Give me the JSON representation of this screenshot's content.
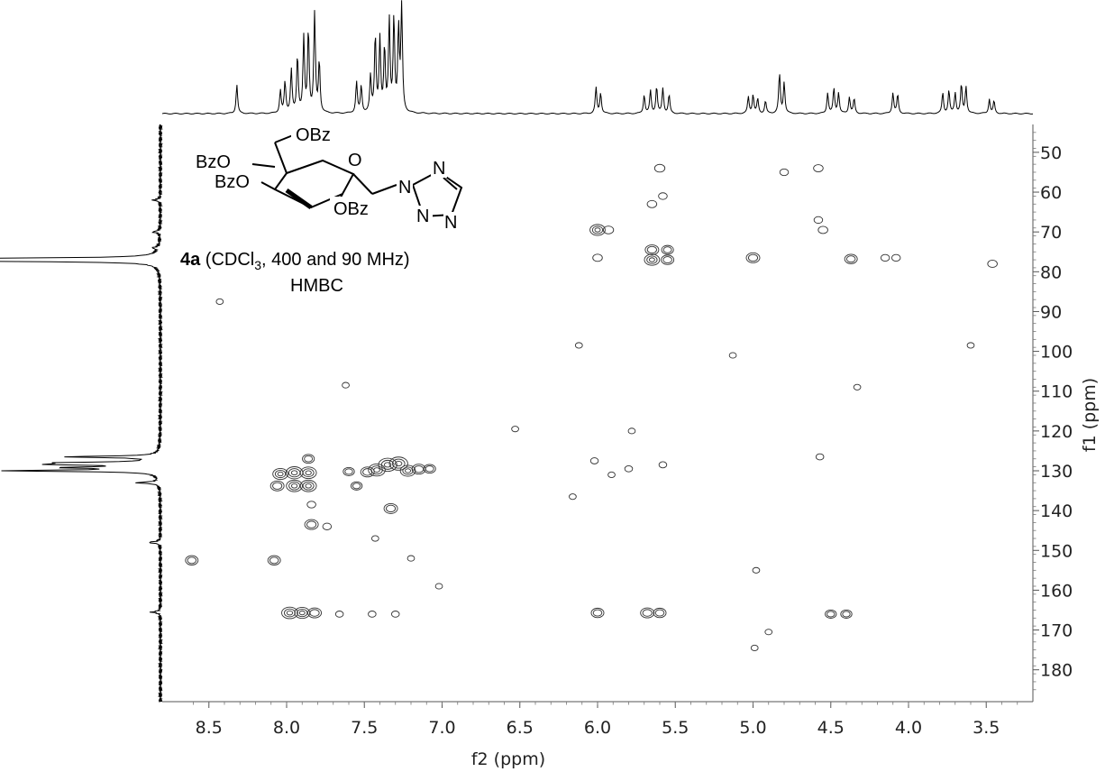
{
  "chart_data": {
    "type": "heatmap",
    "subtype": "2D NMR HMBC contour plot with 1D projections",
    "xlabel": "f2 (ppm)",
    "ylabel": "f1 (ppm)",
    "xlim": [
      8.8,
      3.2
    ],
    "ylim": [
      43,
      188
    ],
    "x_ticks": [
      "8.5",
      "8.0",
      "7.5",
      "7.0",
      "6.5",
      "6.0",
      "5.5",
      "5.0",
      "4.5",
      "4.0",
      "3.5"
    ],
    "x_tick_values": [
      8.5,
      8.0,
      7.5,
      7.0,
      6.5,
      6.0,
      5.5,
      5.0,
      4.5,
      4.0,
      3.5
    ],
    "y_ticks": [
      "50",
      "60",
      "70",
      "80",
      "90",
      "100",
      "110",
      "120",
      "130",
      "140",
      "150",
      "160",
      "170",
      "180"
    ],
    "y_tick_values": [
      50,
      60,
      70,
      80,
      90,
      100,
      110,
      120,
      130,
      140,
      150,
      160,
      170,
      180
    ],
    "grid": false,
    "annotation": {
      "compound": "4a",
      "conditions_prefix": " (CDCl",
      "subscript": "3",
      "conditions_suffix": ", 400 and 90 MHz)",
      "experiment": "HMBC"
    },
    "structure_labels": {
      "obz_top": "OBz",
      "bzo_1": "BzO",
      "bzo_2": "BzO",
      "obz_bottom": "OBz",
      "ring_o": "O",
      "n1": "N",
      "n2": "N",
      "n3": "N",
      "n4": "N"
    },
    "proton_peaks": [
      {
        "x": 8.32,
        "h": 0.28
      },
      {
        "x": 8.04,
        "h": 0.22
      },
      {
        "x": 8.01,
        "h": 0.3
      },
      {
        "x": 7.97,
        "h": 0.42
      },
      {
        "x": 7.93,
        "h": 0.55
      },
      {
        "x": 7.89,
        "h": 0.72
      },
      {
        "x": 7.86,
        "h": 0.8
      },
      {
        "x": 7.82,
        "h": 0.95
      },
      {
        "x": 7.79,
        "h": 0.5
      },
      {
        "x": 7.55,
        "h": 0.3
      },
      {
        "x": 7.52,
        "h": 0.26
      },
      {
        "x": 7.46,
        "h": 0.35
      },
      {
        "x": 7.43,
        "h": 0.75
      },
      {
        "x": 7.4,
        "h": 0.7
      },
      {
        "x": 7.37,
        "h": 0.62
      },
      {
        "x": 7.34,
        "h": 0.88
      },
      {
        "x": 7.31,
        "h": 0.9
      },
      {
        "x": 7.28,
        "h": 0.8
      },
      {
        "x": 7.26,
        "h": 1.0
      },
      {
        "x": 6.01,
        "h": 0.25
      },
      {
        "x": 5.98,
        "h": 0.2
      },
      {
        "x": 5.7,
        "h": 0.18
      },
      {
        "x": 5.66,
        "h": 0.22
      },
      {
        "x": 5.62,
        "h": 0.26
      },
      {
        "x": 5.58,
        "h": 0.24
      },
      {
        "x": 5.54,
        "h": 0.18
      },
      {
        "x": 5.03,
        "h": 0.16
      },
      {
        "x": 5.0,
        "h": 0.18
      },
      {
        "x": 4.97,
        "h": 0.14
      },
      {
        "x": 4.92,
        "h": 0.12
      },
      {
        "x": 4.83,
        "h": 0.38
      },
      {
        "x": 4.8,
        "h": 0.3
      },
      {
        "x": 4.52,
        "h": 0.2
      },
      {
        "x": 4.48,
        "h": 0.24
      },
      {
        "x": 4.45,
        "h": 0.2
      },
      {
        "x": 4.38,
        "h": 0.16
      },
      {
        "x": 4.35,
        "h": 0.14
      },
      {
        "x": 4.1,
        "h": 0.2
      },
      {
        "x": 4.07,
        "h": 0.18
      },
      {
        "x": 3.78,
        "h": 0.2
      },
      {
        "x": 3.74,
        "h": 0.22
      },
      {
        "x": 3.7,
        "h": 0.2
      },
      {
        "x": 3.66,
        "h": 0.28
      },
      {
        "x": 3.63,
        "h": 0.26
      },
      {
        "x": 3.48,
        "h": 0.14
      },
      {
        "x": 3.45,
        "h": 0.12
      }
    ],
    "carbon_peaks": [
      {
        "y": 77.0,
        "h": 1.0
      },
      {
        "y": 77.3,
        "h": 0.95
      },
      {
        "y": 76.7,
        "h": 0.9
      },
      {
        "y": 126.5,
        "h": 0.62
      },
      {
        "y": 128.0,
        "h": 0.55
      },
      {
        "y": 128.4,
        "h": 0.6
      },
      {
        "y": 129.2,
        "h": 0.58
      },
      {
        "y": 130.0,
        "h": 1.0
      },
      {
        "y": 133.0,
        "h": 0.15
      },
      {
        "y": 148.0,
        "h": 0.08
      },
      {
        "y": 165.5,
        "h": 0.06
      },
      {
        "y": 62.0,
        "h": 0.05
      },
      {
        "y": 70.0,
        "h": 0.05
      },
      {
        "y": 74.0,
        "h": 0.04
      }
    ],
    "cross_peaks": [
      {
        "x": 5.6,
        "y": 54,
        "s": 0.6
      },
      {
        "x": 4.8,
        "y": 55,
        "s": 0.4
      },
      {
        "x": 4.58,
        "y": 54,
        "s": 0.5
      },
      {
        "x": 5.58,
        "y": 61,
        "s": 0.4
      },
      {
        "x": 5.65,
        "y": 63,
        "s": 0.5
      },
      {
        "x": 6.0,
        "y": 69.5,
        "s": 1.2
      },
      {
        "x": 5.93,
        "y": 69.5,
        "s": 0.6
      },
      {
        "x": 5.65,
        "y": 74.5,
        "s": 1.0
      },
      {
        "x": 5.55,
        "y": 74.5,
        "s": 0.8
      },
      {
        "x": 5.65,
        "y": 77,
        "s": 1.2
      },
      {
        "x": 5.55,
        "y": 77,
        "s": 0.9
      },
      {
        "x": 6.0,
        "y": 76.5,
        "s": 0.5
      },
      {
        "x": 5.0,
        "y": 76.5,
        "s": 1.0
      },
      {
        "x": 4.37,
        "y": 76.8,
        "s": 0.9
      },
      {
        "x": 4.55,
        "y": 69.5,
        "s": 0.5
      },
      {
        "x": 4.58,
        "y": 67,
        "s": 0.4
      },
      {
        "x": 3.46,
        "y": 78,
        "s": 0.5
      },
      {
        "x": 4.15,
        "y": 76.5,
        "s": 0.4
      },
      {
        "x": 4.08,
        "y": 76.5,
        "s": 0.4
      },
      {
        "x": 7.35,
        "y": 128.5,
        "s": 1.6
      },
      {
        "x": 7.28,
        "y": 128.2,
        "s": 1.6
      },
      {
        "x": 7.42,
        "y": 129.8,
        "s": 1.4
      },
      {
        "x": 7.22,
        "y": 130,
        "s": 1.2
      },
      {
        "x": 7.15,
        "y": 129.6,
        "s": 1.0
      },
      {
        "x": 7.08,
        "y": 129.5,
        "s": 0.8
      },
      {
        "x": 7.48,
        "y": 130.3,
        "s": 1.0
      },
      {
        "x": 7.95,
        "y": 130.5,
        "s": 1.4
      },
      {
        "x": 7.86,
        "y": 130.5,
        "s": 1.3
      },
      {
        "x": 8.04,
        "y": 130.8,
        "s": 1.2
      },
      {
        "x": 7.95,
        "y": 133.8,
        "s": 1.3
      },
      {
        "x": 7.86,
        "y": 133.8,
        "s": 1.3
      },
      {
        "x": 8.06,
        "y": 133.8,
        "s": 1.0
      },
      {
        "x": 7.86,
        "y": 127,
        "s": 0.8
      },
      {
        "x": 7.55,
        "y": 133.8,
        "s": 0.7
      },
      {
        "x": 7.6,
        "y": 130.2,
        "s": 0.7
      },
      {
        "x": 7.33,
        "y": 139.5,
        "s": 1.0
      },
      {
        "x": 7.84,
        "y": 143.5,
        "s": 1.0
      },
      {
        "x": 7.74,
        "y": 144,
        "s": 0.4
      },
      {
        "x": 7.84,
        "y": 138.5,
        "s": 0.4
      },
      {
        "x": 8.61,
        "y": 152.5,
        "s": 0.9
      },
      {
        "x": 8.08,
        "y": 152.5,
        "s": 0.9
      },
      {
        "x": 7.98,
        "y": 165.7,
        "s": 1.3
      },
      {
        "x": 7.9,
        "y": 165.7,
        "s": 1.2
      },
      {
        "x": 7.82,
        "y": 165.7,
        "s": 1.0
      },
      {
        "x": 7.66,
        "y": 166,
        "s": 0.3
      },
      {
        "x": 7.45,
        "y": 166,
        "s": 0.3
      },
      {
        "x": 7.3,
        "y": 166,
        "s": 0.3
      },
      {
        "x": 6.0,
        "y": 165.7,
        "s": 0.9
      },
      {
        "x": 5.68,
        "y": 165.7,
        "s": 1.0
      },
      {
        "x": 5.6,
        "y": 165.7,
        "s": 0.9
      },
      {
        "x": 4.5,
        "y": 166,
        "s": 0.7
      },
      {
        "x": 4.4,
        "y": 166,
        "s": 0.7
      },
      {
        "x": 5.8,
        "y": 129.5,
        "s": 0.3
      },
      {
        "x": 5.58,
        "y": 128.5,
        "s": 0.3
      },
      {
        "x": 6.02,
        "y": 127.5,
        "s": 0.3
      },
      {
        "x": 4.57,
        "y": 126.5,
        "s": 0.3
      },
      {
        "x": 6.53,
        "y": 119.5,
        "s": 0.2
      },
      {
        "x": 5.78,
        "y": 120,
        "s": 0.2
      },
      {
        "x": 7.62,
        "y": 108.5,
        "s": 0.2
      },
      {
        "x": 4.33,
        "y": 109,
        "s": 0.2
      },
      {
        "x": 5.13,
        "y": 101,
        "s": 0.2
      },
      {
        "x": 6.12,
        "y": 98.5,
        "s": 0.2
      },
      {
        "x": 3.6,
        "y": 98.5,
        "s": 0.2
      },
      {
        "x": 8.43,
        "y": 87.5,
        "s": 0.2
      },
      {
        "x": 4.98,
        "y": 155,
        "s": 0.2
      },
      {
        "x": 7.02,
        "y": 159,
        "s": 0.2
      },
      {
        "x": 4.9,
        "y": 170.5,
        "s": 0.2
      },
      {
        "x": 4.99,
        "y": 174.5,
        "s": 0.2
      },
      {
        "x": 7.2,
        "y": 152,
        "s": 0.2
      },
      {
        "x": 7.43,
        "y": 147,
        "s": 0.2
      },
      {
        "x": 6.16,
        "y": 136.5,
        "s": 0.2
      },
      {
        "x": 5.91,
        "y": 131,
        "s": 0.2
      }
    ]
  }
}
